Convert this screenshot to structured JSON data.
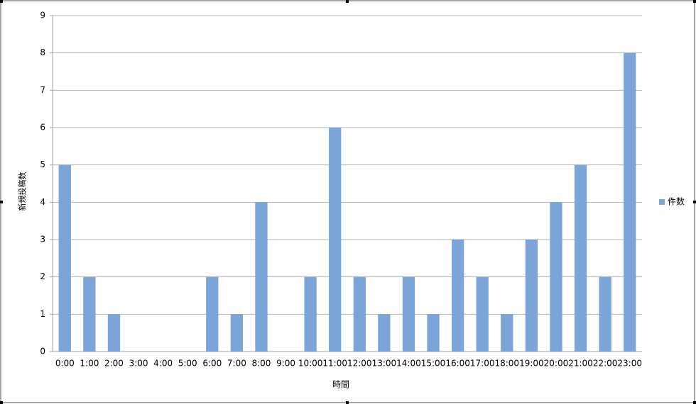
{
  "chart_data": {
    "type": "bar",
    "categories": [
      "0:00",
      "1:00",
      "2:00",
      "3:00",
      "4:00",
      "5:00",
      "6:00",
      "7:00",
      "8:00",
      "9:00",
      "10:00",
      "11:00",
      "12:00",
      "13:00",
      "14:00",
      "15:00",
      "16:00",
      "17:00",
      "18:00",
      "19:00",
      "20:00",
      "21:00",
      "22:00",
      "23:00"
    ],
    "series": [
      {
        "name": "件数",
        "color": "#7ba4d9",
        "values": [
          5,
          2,
          1,
          0,
          0,
          0,
          2,
          1,
          4,
          0,
          2,
          6,
          2,
          1,
          2,
          1,
          3,
          2,
          1,
          3,
          4,
          5,
          2,
          8
        ]
      }
    ],
    "x_label": "時間",
    "y_label": "新規投稿数",
    "ylim": [
      0,
      9
    ],
    "yticks": [
      0,
      1,
      2,
      3,
      4,
      5,
      6,
      7,
      8,
      9
    ],
    "grid": true,
    "legend": "right"
  }
}
